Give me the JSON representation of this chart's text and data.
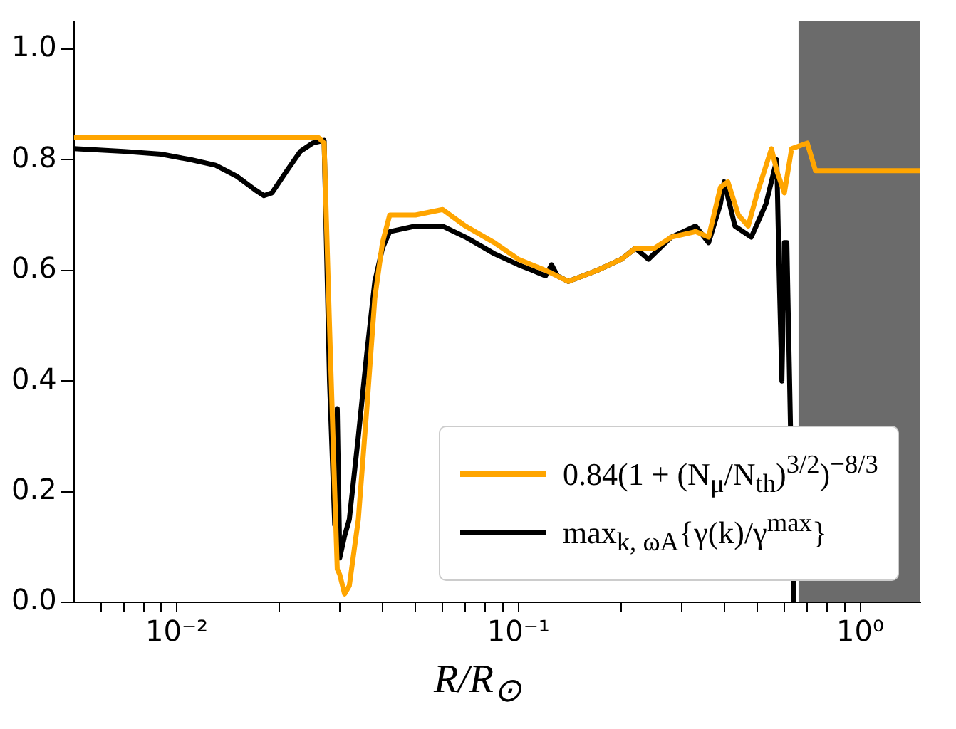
{
  "chart_data": {
    "type": "line",
    "xlabel": "R/R$_{⊙}$",
    "log": "x",
    "legend": "bottom right",
    "grid": false,
    "xlim": [
      0.005,
      1.5
    ],
    "ylim": [
      0,
      1.05
    ],
    "xticks": [
      {
        "value": 0.006,
        "label": null
      },
      {
        "value": 0.007,
        "label": null
      },
      {
        "value": 0.008,
        "label": null
      },
      {
        "value": 0.009,
        "label": null
      },
      {
        "value": 0.01,
        "label": "10⁻²"
      },
      {
        "value": 0.02,
        "label": null
      },
      {
        "value": 0.03,
        "label": null
      },
      {
        "value": 0.04,
        "label": null
      },
      {
        "value": 0.05,
        "label": null
      },
      {
        "value": 0.06,
        "label": null
      },
      {
        "value": 0.07,
        "label": null
      },
      {
        "value": 0.08,
        "label": null
      },
      {
        "value": 0.09,
        "label": null
      },
      {
        "value": 0.1,
        "label": "10⁻¹"
      },
      {
        "value": 0.2,
        "label": null
      },
      {
        "value": 0.3,
        "label": null
      },
      {
        "value": 0.4,
        "label": null
      },
      {
        "value": 0.5,
        "label": null
      },
      {
        "value": 0.6,
        "label": null
      },
      {
        "value": 0.7,
        "label": null
      },
      {
        "value": 0.8,
        "label": null
      },
      {
        "value": 0.9,
        "label": null
      },
      {
        "value": 1,
        "label": "10⁰"
      }
    ],
    "yticks": [
      {
        "value": 0,
        "label": "0.0"
      },
      0.2,
      0.4,
      0.6,
      0.8,
      {
        "value": 1,
        "label": "1.0"
      }
    ],
    "bands": [
      {
        "axis": "x",
        "from": 0.66,
        "to": 1.5,
        "color": "#6b6b6b"
      }
    ],
    "series": [
      {
        "name": "0.84(1 + (N$_{μ}$/N$_{th}$)$^{3/2}$)$^{−8/3}$",
        "color": "#ffa500",
        "x": [
          0.005,
          0.01,
          0.02,
          0.026,
          0.027,
          0.028,
          0.029,
          0.0295,
          0.03,
          0.031,
          0.032,
          0.034,
          0.036,
          0.038,
          0.04,
          0.042,
          0.05,
          0.06,
          0.07,
          0.085,
          0.1,
          0.12,
          0.14,
          0.17,
          0.2,
          0.22,
          0.25,
          0.28,
          0.33,
          0.36,
          0.39,
          0.41,
          0.44,
          0.47,
          0.5,
          0.55,
          0.57,
          0.6,
          0.63,
          0.7,
          0.74,
          0.8,
          1.0,
          1.5
        ],
        "values": [
          0.84,
          0.84,
          0.84,
          0.84,
          0.83,
          0.5,
          0.2,
          0.06,
          0.05,
          0.015,
          0.03,
          0.15,
          0.35,
          0.55,
          0.65,
          0.7,
          0.7,
          0.71,
          0.68,
          0.65,
          0.62,
          0.6,
          0.58,
          0.6,
          0.62,
          0.64,
          0.64,
          0.66,
          0.67,
          0.66,
          0.75,
          0.76,
          0.7,
          0.68,
          0.74,
          0.82,
          0.78,
          0.74,
          0.82,
          0.83,
          0.78,
          0.78,
          0.78,
          0.78
        ]
      },
      {
        "name": "max$_{k, ωA}${γ(k)/γ$^{max}$}",
        "color": "#000000",
        "x": [
          0.005,
          0.007,
          0.009,
          0.011,
          0.013,
          0.015,
          0.017,
          0.018,
          0.019,
          0.021,
          0.023,
          0.025,
          0.027,
          0.028,
          0.029,
          0.0295,
          0.03,
          0.031,
          0.032,
          0.034,
          0.036,
          0.038,
          0.04,
          0.042,
          0.05,
          0.06,
          0.07,
          0.085,
          0.1,
          0.11,
          0.12,
          0.125,
          0.13,
          0.14,
          0.17,
          0.2,
          0.22,
          0.24,
          0.28,
          0.33,
          0.36,
          0.39,
          0.4,
          0.43,
          0.48,
          0.53,
          0.57,
          0.58,
          0.59,
          0.6,
          0.61,
          0.64
        ],
        "values": [
          0.82,
          0.815,
          0.81,
          0.8,
          0.79,
          0.77,
          0.745,
          0.735,
          0.74,
          0.78,
          0.815,
          0.83,
          0.835,
          0.4,
          0.14,
          0.35,
          0.08,
          0.12,
          0.15,
          0.3,
          0.45,
          0.58,
          0.64,
          0.67,
          0.68,
          0.68,
          0.66,
          0.63,
          0.61,
          0.6,
          0.59,
          0.61,
          0.59,
          0.58,
          0.6,
          0.62,
          0.64,
          0.62,
          0.66,
          0.68,
          0.65,
          0.72,
          0.76,
          0.68,
          0.66,
          0.72,
          0.8,
          0.58,
          0.4,
          0.65,
          0.65,
          0
        ]
      }
    ]
  }
}
